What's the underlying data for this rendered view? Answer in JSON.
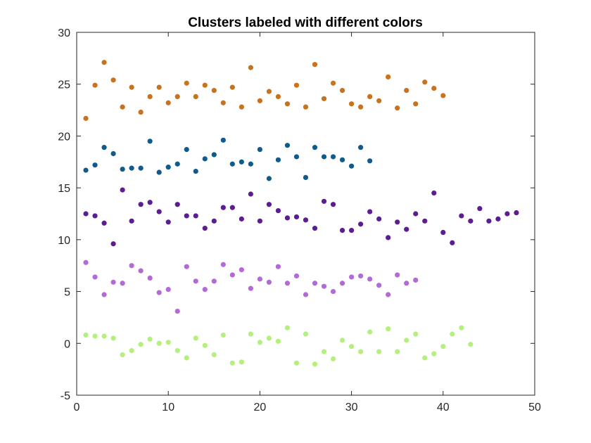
{
  "chart_data": {
    "type": "scatter",
    "title": "Clusters labeled with different colors",
    "xlabel": "",
    "ylabel": "",
    "xlim": [
      0,
      50
    ],
    "ylim": [
      -5,
      30
    ],
    "xticks": [
      0,
      10,
      20,
      30,
      40,
      50
    ],
    "yticks": [
      -5,
      0,
      5,
      10,
      15,
      20,
      25,
      30
    ],
    "grid": false,
    "legend": "none",
    "series": [
      {
        "color": "#C8721E",
        "x": [
          1,
          2,
          3,
          4,
          5,
          6,
          7,
          8,
          9,
          10,
          11,
          12,
          13,
          14,
          15,
          16,
          17,
          18,
          19,
          20,
          21,
          22,
          23,
          24,
          25,
          26,
          27,
          28,
          29,
          30,
          31,
          32,
          33,
          34,
          35,
          36,
          37,
          38,
          39,
          40
        ],
        "y": [
          21.7,
          24.9,
          27.1,
          25.4,
          22.8,
          24.7,
          22.3,
          23.8,
          24.7,
          23.2,
          23.8,
          25.1,
          23.8,
          24.9,
          24.4,
          23.2,
          24.7,
          22.8,
          26.6,
          23.4,
          24.3,
          23.8,
          23.1,
          24.9,
          22.8,
          26.9,
          23.6,
          25.1,
          24.4,
          23.1,
          22.8,
          23.8,
          23.4,
          25.7,
          22.7,
          24.4,
          23.1,
          25.2,
          24.6,
          23.9
        ]
      },
      {
        "color": "#0F5B8C",
        "x": [
          1,
          2,
          3,
          4,
          5,
          6,
          7,
          8,
          9,
          10,
          11,
          12,
          13,
          14,
          15,
          16,
          17,
          18,
          19,
          20,
          21,
          22,
          23,
          24,
          25,
          26,
          27,
          28,
          29,
          30,
          31,
          32
        ],
        "y": [
          16.7,
          17.2,
          18.9,
          18.3,
          16.8,
          16.9,
          16.9,
          19.5,
          16.5,
          17.0,
          17.3,
          18.7,
          16.6,
          17.8,
          18.2,
          19.6,
          17.3,
          17.5,
          17.3,
          18.7,
          15.9,
          17.7,
          19.1,
          18.0,
          16.0,
          18.9,
          18.0,
          18.0,
          17.7,
          17.1,
          18.9,
          17.6
        ]
      },
      {
        "color": "#5B1C94",
        "x": [
          1,
          2,
          3,
          4,
          5,
          6,
          7,
          8,
          9,
          10,
          11,
          12,
          13,
          14,
          15,
          16,
          17,
          18,
          19,
          20,
          21,
          22,
          23,
          24,
          25,
          26,
          27,
          28,
          29,
          30,
          31,
          32,
          33,
          34,
          35,
          36,
          37,
          38,
          39,
          40,
          41,
          42,
          43,
          44,
          45,
          46,
          47,
          48
        ],
        "y": [
          12.5,
          12.3,
          11.6,
          9.6,
          14.8,
          11.8,
          13.4,
          13.6,
          12.7,
          11.7,
          13.4,
          12.3,
          12.3,
          11.1,
          11.8,
          13.1,
          13.1,
          12.0,
          14.4,
          11.8,
          13.4,
          12.8,
          12.1,
          12.2,
          11.9,
          11.1,
          13.7,
          13.4,
          10.9,
          10.9,
          11.5,
          12.7,
          12.0,
          10.2,
          11.7,
          11.0,
          12.5,
          11.8,
          14.5,
          10.7,
          9.7,
          12.3,
          11.8,
          13.0,
          11.8,
          12.0,
          12.5,
          12.6
        ]
      },
      {
        "color": "#B26BD6",
        "x": [
          1,
          2,
          3,
          4,
          5,
          6,
          7,
          8,
          9,
          10,
          11,
          12,
          13,
          14,
          15,
          16,
          17,
          18,
          19,
          20,
          21,
          22,
          23,
          24,
          25,
          26,
          27,
          28,
          29,
          30,
          31,
          32,
          33,
          34,
          35,
          36,
          37
        ],
        "y": [
          7.8,
          6.4,
          4.7,
          5.9,
          5.8,
          7.5,
          7.0,
          6.3,
          4.9,
          5.2,
          3.1,
          7.4,
          6.0,
          5.2,
          6.0,
          7.6,
          6.6,
          7.1,
          5.3,
          6.2,
          5.9,
          7.4,
          5.8,
          6.5,
          4.7,
          5.8,
          5.5,
          5.0,
          5.8,
          6.4,
          6.5,
          6.2,
          5.6,
          4.7,
          6.6,
          5.8,
          6.1
        ]
      },
      {
        "color": "#B5F07C",
        "x": [
          1,
          2,
          3,
          4,
          5,
          6,
          7,
          8,
          9,
          10,
          11,
          12,
          13,
          14,
          15,
          16,
          17,
          18,
          19,
          20,
          21,
          22,
          23,
          24,
          25,
          26,
          27,
          28,
          29,
          30,
          31,
          32,
          33,
          34,
          35,
          36,
          37,
          38,
          39,
          40,
          41,
          42,
          43
        ],
        "y": [
          0.8,
          0.7,
          0.7,
          0.5,
          -1.1,
          -0.7,
          -0.1,
          0.4,
          0.0,
          0.1,
          -0.7,
          -1.4,
          0.5,
          -0.2,
          -1.1,
          0.8,
          -1.9,
          -1.8,
          0.9,
          0.1,
          0.5,
          0.2,
          1.5,
          -1.9,
          0.9,
          -2.0,
          -0.8,
          -1.5,
          0.3,
          -0.3,
          -0.8,
          1.1,
          -0.8,
          1.4,
          -0.8,
          0.3,
          0.9,
          -1.4,
          -1.0,
          -0.3,
          0.9,
          1.5,
          -0.1
        ]
      }
    ]
  }
}
